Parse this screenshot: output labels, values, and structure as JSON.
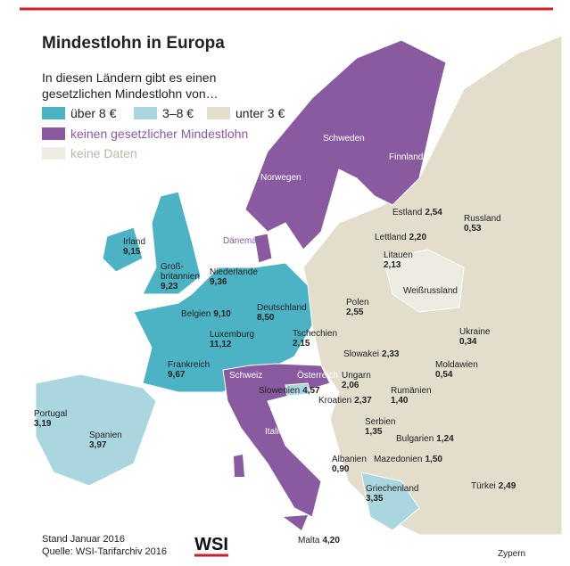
{
  "header": {
    "title": "Mindestlohn in Europa",
    "subtitle": [
      "In diesen Ländern gibt es einen",
      "gesetzlichen Mindestlohn von…"
    ]
  },
  "legend": [
    {
      "label": "über 8 €",
      "color": "#4bb3c4"
    },
    {
      "label": "3–8 €",
      "color": "#a9d6df"
    },
    {
      "label": "unter 3 €",
      "color": "#e3ddcc"
    },
    {
      "label": "keinen gesetzlicher Mindestlohn",
      "color": "#8a5aa0"
    },
    {
      "label": "keine Daten",
      "color": "#eeebe2"
    }
  ],
  "countries": [
    {
      "name": "Irland",
      "value": "9,15"
    },
    {
      "name": [
        "Groß-",
        "britannien"
      ],
      "value": "9,23"
    },
    {
      "name": "Niederlande",
      "value": "9,36"
    },
    {
      "name": "Belgien",
      "value": "9,10"
    },
    {
      "name": "Luxemburg",
      "value": "11,12"
    },
    {
      "name": "Deutschland",
      "value": "8,50"
    },
    {
      "name": "Frankreich",
      "value": "9,67"
    },
    {
      "name": "Portugal",
      "value": "3,19"
    },
    {
      "name": "Spanien",
      "value": "3,97"
    },
    {
      "name": "Dänemark"
    },
    {
      "name": "Norwegen"
    },
    {
      "name": "Schweden"
    },
    {
      "name": "Finnland"
    },
    {
      "name": "Schweiz"
    },
    {
      "name": "Österreich"
    },
    {
      "name": "Italien"
    },
    {
      "name": "Estland",
      "value": "2,54"
    },
    {
      "name": "Lettland",
      "value": "2,20"
    },
    {
      "name": "Litauen",
      "value": "2,13"
    },
    {
      "name": "Weißrussland"
    },
    {
      "name": "Russland",
      "value": "0,53"
    },
    {
      "name": "Polen",
      "value": "2,55"
    },
    {
      "name": "Tschechien",
      "value": "2,15"
    },
    {
      "name": "Slowakei",
      "value": "2,33"
    },
    {
      "name": "Ukraine",
      "value": "0,34"
    },
    {
      "name": "Ungarn",
      "value": "2,06"
    },
    {
      "name": "Moldawien",
      "value": "0,54"
    },
    {
      "name": "Slowenien",
      "value": "4,57"
    },
    {
      "name": "Kroatien",
      "value": "2,37"
    },
    {
      "name": "Rumänien",
      "value": "1,40"
    },
    {
      "name": "Serbien",
      "value": "1,35"
    },
    {
      "name": "Bulgarien",
      "value": "1,24"
    },
    {
      "name": "Albanien",
      "value": "0,90"
    },
    {
      "name": "Mazedonien",
      "value": "1,50"
    },
    {
      "name": "Griechenland",
      "value": "3,35"
    },
    {
      "name": "Türkei",
      "value": "2,49"
    },
    {
      "name": "Malta",
      "value": "4,20"
    },
    {
      "name": "Zypern"
    }
  ],
  "footer": {
    "lines": [
      "Stand Januar 2016",
      "Quelle: WSI-Tarifarchiv 2016"
    ],
    "logo": "WSI"
  }
}
